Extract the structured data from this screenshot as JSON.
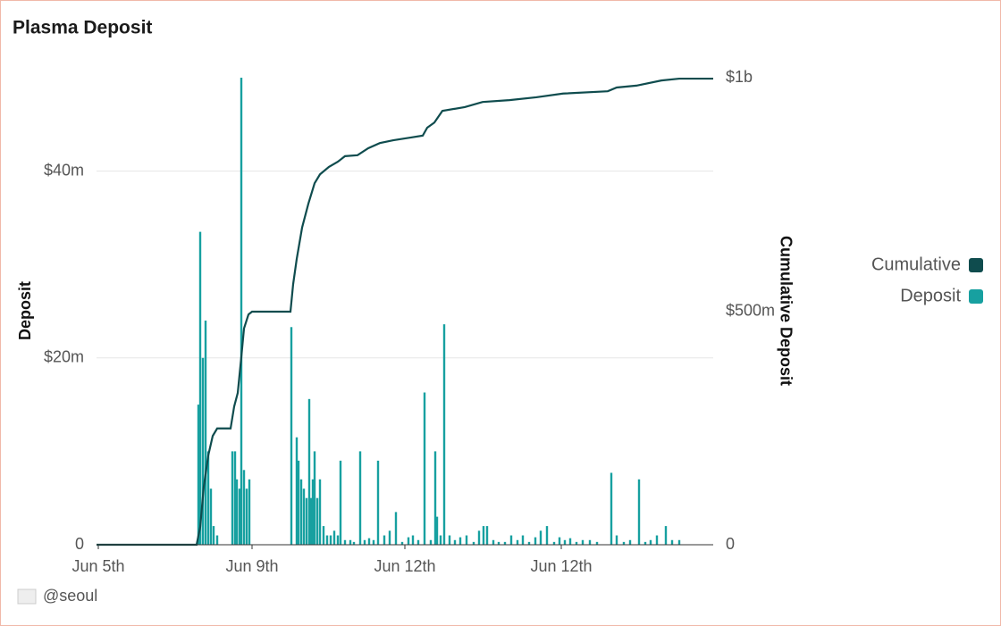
{
  "chart_data": {
    "type": "bar-line",
    "title": "Plasma Deposit",
    "footer": "@seoul",
    "ylabel": "Deposit",
    "y2label": "Cumulative Deposit",
    "xlim": [
      0,
      690
    ],
    "xticks": [
      {
        "value": 2,
        "label": "Jun 5th"
      },
      {
        "value": 174,
        "label": "Jun 9th"
      },
      {
        "value": 345,
        "label": "Jun 12th"
      },
      {
        "value": 520,
        "label": "Jun 12th"
      }
    ],
    "ylim": [
      0,
      50
    ],
    "yticks": [
      0,
      {
        "value": 20,
        "label": "$20m"
      },
      {
        "value": 40,
        "label": "$40m"
      }
    ],
    "y2lim": [
      0,
      1000
    ],
    "y2ticks": [
      0,
      {
        "value": 500,
        "label": "$500m"
      },
      {
        "value": 1000,
        "label": "$1b"
      }
    ],
    "grid": true,
    "legend": "right",
    "series": [
      {
        "name": "Cumulative",
        "color": "#0f4c4e",
        "axis": "y2",
        "kind": "line",
        "x": [
          0,
          112,
          116,
          120,
          125,
          130,
          135,
          150,
          154,
          158,
          162,
          165,
          170,
          174,
          217,
          220,
          224,
          230,
          237,
          244,
          250,
          260,
          270,
          278,
          292,
          304,
          317,
          332,
          352,
          365,
          370,
          378,
          387,
          412,
          432,
          462,
          492,
          522,
          572,
          582,
          604,
          632,
          652,
          690
        ],
        "values": [
          0,
          0,
          38,
          124,
          191,
          233,
          249,
          249,
          296,
          325,
          402,
          463,
          493,
          499,
          499,
          558,
          612,
          679,
          730,
          774,
          793,
          809,
          820,
          832,
          834,
          849,
          860,
          866,
          872,
          876,
          893,
          904,
          929,
          937,
          948,
          952,
          958,
          966,
          971,
          979,
          983,
          994,
          998,
          998
        ]
      },
      {
        "name": "Deposit",
        "color": "#17a0a0",
        "kind": "bar",
        "x": [
          114,
          116,
          119,
          122,
          125,
          128,
          131,
          135,
          152,
          155,
          157,
          160,
          162,
          165,
          168,
          171,
          218,
          224,
          226,
          229,
          232,
          235,
          238,
          240,
          242,
          244,
          247,
          250,
          254,
          258,
          262,
          266,
          270,
          273,
          278,
          284,
          288,
          295,
          300,
          305,
          310,
          315,
          322,
          328,
          335,
          342,
          349,
          354,
          360,
          367,
          374,
          379,
          381,
          385,
          389,
          395,
          401,
          407,
          414,
          422,
          428,
          433,
          437,
          444,
          450,
          457,
          464,
          471,
          477,
          484,
          491,
          497,
          504,
          512,
          518,
          524,
          530,
          537,
          544,
          552,
          560,
          576,
          582,
          590,
          597,
          607,
          614,
          620,
          627,
          637,
          644,
          652
        ],
        "values": [
          15,
          33.5,
          20,
          24,
          10,
          6,
          2,
          1,
          10,
          10,
          7,
          6,
          50,
          8,
          6,
          7,
          23.3,
          11.5,
          9,
          7,
          6,
          5,
          15.6,
          5,
          7,
          10,
          5,
          7,
          2,
          1,
          1,
          1.5,
          1,
          9,
          0.5,
          0.5,
          0.3,
          10,
          0.5,
          0.7,
          0.5,
          9,
          1,
          1.5,
          3.5,
          0.3,
          0.8,
          1,
          0.5,
          16.3,
          0.5,
          10,
          3,
          1,
          23.6,
          1,
          0.5,
          0.8,
          1,
          0.3,
          1.5,
          2,
          2,
          0.5,
          0.3,
          0.3,
          1,
          0.5,
          1,
          0.3,
          0.8,
          1.5,
          2,
          0.3,
          0.8,
          0.5,
          0.7,
          0.3,
          0.5,
          0.5,
          0.3,
          7.7,
          1,
          0.3,
          0.5,
          7,
          0.3,
          0.5,
          1,
          2,
          0.5,
          0.5
        ]
      }
    ]
  }
}
